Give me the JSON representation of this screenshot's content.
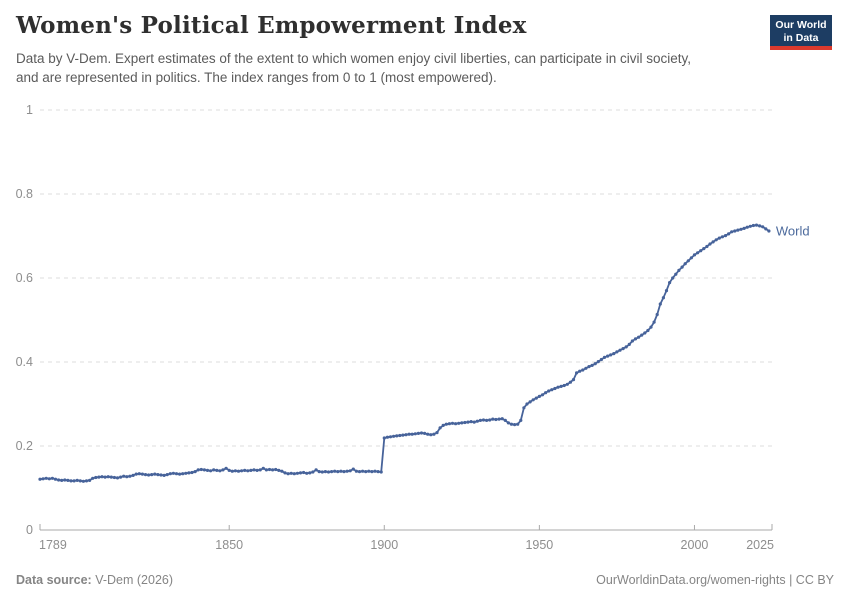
{
  "header": {
    "title": "Women's Political Empowerment Index",
    "subtitle": "Data by V-Dem. Expert estimates of the extent to which women enjoy civil liberties, can participate in civil society, and are represented in politics. The index ranges from 0 to 1 (most empowered).",
    "logo": {
      "line1": "Our World",
      "line2": "in Data",
      "bg_color": "#1d3d63",
      "bar_color": "#dc3a2d"
    }
  },
  "footer": {
    "source_label": "Data source:",
    "source_value": "V-Dem (2026)",
    "link_text": "OurWorldinData.org/women-rights | CC BY"
  },
  "chart_data": {
    "type": "line",
    "title": "Women's Political Empowerment Index",
    "xlabel": "",
    "ylabel": "",
    "xlim": [
      1789,
      2025
    ],
    "ylim": [
      0,
      1
    ],
    "grid": "dashed-horizontal",
    "legend": "end-of-line-label",
    "x_ticks": [
      {
        "v": 1789,
        "label": "1789",
        "tick": false,
        "anchor": "start"
      },
      {
        "v": 1850,
        "label": "1850",
        "tick": true,
        "anchor": "middle"
      },
      {
        "v": 1900,
        "label": "1900",
        "tick": true,
        "anchor": "middle"
      },
      {
        "v": 1950,
        "label": "1950",
        "tick": true,
        "anchor": "middle"
      },
      {
        "v": 2000,
        "label": "2000",
        "tick": true,
        "anchor": "middle"
      },
      {
        "v": 2025,
        "label": "2025",
        "tick": false,
        "anchor": "end"
      }
    ],
    "y_ticks": [
      {
        "v": 0,
        "label": "0"
      },
      {
        "v": 0.2,
        "label": "0.2"
      },
      {
        "v": 0.4,
        "label": "0.4"
      },
      {
        "v": 0.6,
        "label": "0.6"
      },
      {
        "v": 0.8,
        "label": "0.8"
      },
      {
        "v": 1,
        "label": "1"
      }
    ],
    "colors": {
      "grid": "#dcdcdc",
      "axis": "#a9a9a9",
      "tick_label": "#8e8e8e"
    },
    "series": [
      {
        "name": "World",
        "color": "#47639a",
        "label_color": "#4c6a9c",
        "start_year": 1789,
        "values": [
          0.121,
          0.122,
          0.123,
          0.122,
          0.123,
          0.121,
          0.119,
          0.118,
          0.119,
          0.118,
          0.117,
          0.117,
          0.118,
          0.117,
          0.116,
          0.117,
          0.118,
          0.123,
          0.125,
          0.126,
          0.127,
          0.126,
          0.127,
          0.126,
          0.125,
          0.124,
          0.126,
          0.128,
          0.127,
          0.128,
          0.13,
          0.133,
          0.134,
          0.133,
          0.132,
          0.131,
          0.132,
          0.133,
          0.132,
          0.131,
          0.13,
          0.132,
          0.134,
          0.135,
          0.134,
          0.133,
          0.134,
          0.135,
          0.136,
          0.137,
          0.139,
          0.143,
          0.144,
          0.143,
          0.142,
          0.141,
          0.143,
          0.142,
          0.141,
          0.143,
          0.147,
          0.142,
          0.14,
          0.141,
          0.14,
          0.141,
          0.142,
          0.141,
          0.142,
          0.143,
          0.142,
          0.143,
          0.147,
          0.143,
          0.144,
          0.143,
          0.144,
          0.142,
          0.14,
          0.136,
          0.134,
          0.135,
          0.134,
          0.135,
          0.136,
          0.137,
          0.135,
          0.136,
          0.138,
          0.143,
          0.139,
          0.138,
          0.139,
          0.138,
          0.139,
          0.14,
          0.139,
          0.14,
          0.139,
          0.14,
          0.141,
          0.145,
          0.14,
          0.139,
          0.14,
          0.139,
          0.14,
          0.139,
          0.14,
          0.139,
          0.138,
          0.219,
          0.221,
          0.222,
          0.223,
          0.224,
          0.225,
          0.226,
          0.227,
          0.228,
          0.228,
          0.229,
          0.23,
          0.231,
          0.23,
          0.228,
          0.227,
          0.228,
          0.232,
          0.243,
          0.249,
          0.252,
          0.253,
          0.254,
          0.253,
          0.254,
          0.255,
          0.256,
          0.257,
          0.258,
          0.257,
          0.259,
          0.261,
          0.262,
          0.261,
          0.262,
          0.264,
          0.263,
          0.264,
          0.265,
          0.261,
          0.255,
          0.252,
          0.251,
          0.252,
          0.261,
          0.291,
          0.3,
          0.305,
          0.31,
          0.314,
          0.318,
          0.322,
          0.327,
          0.331,
          0.334,
          0.337,
          0.34,
          0.342,
          0.344,
          0.347,
          0.352,
          0.358,
          0.374,
          0.378,
          0.381,
          0.385,
          0.389,
          0.392,
          0.396,
          0.401,
          0.406,
          0.411,
          0.414,
          0.417,
          0.42,
          0.424,
          0.428,
          0.432,
          0.436,
          0.442,
          0.45,
          0.455,
          0.459,
          0.464,
          0.469,
          0.475,
          0.483,
          0.495,
          0.513,
          0.538,
          0.553,
          0.57,
          0.589,
          0.6,
          0.609,
          0.618,
          0.626,
          0.634,
          0.641,
          0.648,
          0.655,
          0.66,
          0.665,
          0.67,
          0.675,
          0.681,
          0.686,
          0.691,
          0.695,
          0.698,
          0.701,
          0.705,
          0.71,
          0.712,
          0.714,
          0.716,
          0.718,
          0.721,
          0.723,
          0.725,
          0.726,
          0.724,
          0.722,
          0.717,
          0.712
        ]
      }
    ]
  }
}
